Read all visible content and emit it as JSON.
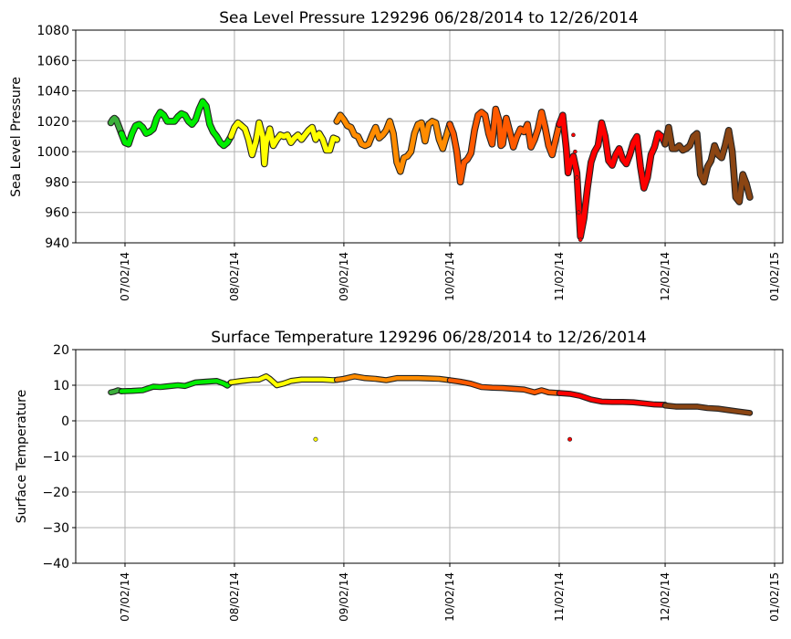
{
  "colors": {
    "late_june": "#3cb03c",
    "july": "#00ee00",
    "august": "#ffff00",
    "september": "#ff8c00",
    "october": "#ff5a00",
    "november": "#ff0000",
    "december": "#8b4513",
    "grid": "#b0b0b0",
    "edge": "#222222"
  },
  "chart_data": [
    {
      "type": "scatter",
      "title": "Sea Level Pressure 129296  06/28/2014 to 12/26/2014",
      "xlabel": "",
      "ylabel": "Sea Level Pressure",
      "ylim": [
        940,
        1080
      ],
      "yticks": [
        "940",
        "960",
        "980",
        "1000",
        "1020",
        "1040",
        "1060",
        "1080"
      ],
      "ytick_values": [
        940,
        960,
        980,
        1000,
        1020,
        1040,
        1060,
        1080
      ],
      "xticks": [
        "07/02/14",
        "08/02/14",
        "09/02/14",
        "10/02/14",
        "11/02/14",
        "12/02/14",
        "01/02/15"
      ],
      "xtick_days": [
        4,
        35,
        66,
        96,
        127,
        157,
        188
      ],
      "x_unit": "days since 06/28/2014",
      "grid": true,
      "series": [
        {
          "name": "late_june",
          "color_key": "late_june",
          "x": [
            0,
            0.5,
            1,
            1.5,
            2,
            2.5,
            3
          ],
          "y": [
            1019,
            1021,
            1022,
            1021,
            1018,
            1015,
            1012
          ]
        },
        {
          "name": "july",
          "color_key": "july",
          "x": [
            3,
            4,
            5,
            6,
            7,
            8,
            9,
            10,
            11,
            12,
            13,
            14,
            15,
            16,
            17,
            18,
            19,
            20,
            21,
            22,
            23,
            24,
            25,
            26,
            27,
            28,
            29,
            30,
            31,
            32,
            33,
            34
          ],
          "y": [
            1012,
            1006,
            1005,
            1012,
            1017,
            1018,
            1016,
            1012,
            1013,
            1015,
            1022,
            1026,
            1024,
            1020,
            1020,
            1020,
            1023,
            1025,
            1024,
            1020,
            1018,
            1021,
            1028,
            1033,
            1030,
            1018,
            1013,
            1010,
            1006,
            1004,
            1006,
            1010
          ]
        },
        {
          "name": "august",
          "color_key": "august",
          "x": [
            34,
            35,
            36,
            37,
            38,
            39,
            40,
            41,
            41.5,
            42,
            43,
            43.5,
            44,
            45,
            46,
            47,
            48,
            49,
            50,
            51,
            52,
            53,
            54,
            55,
            56,
            57,
            58,
            59,
            60,
            61,
            62,
            63,
            64
          ],
          "y": [
            1010,
            1016,
            1019,
            1017,
            1015,
            1008,
            998,
            1006,
            1012,
            1019,
            1010,
            992,
            1006,
            1015,
            1004,
            1008,
            1011,
            1010,
            1011,
            1006,
            1009,
            1011,
            1008,
            1011,
            1014,
            1016,
            1008,
            1012,
            1008,
            1001,
            1001,
            1009,
            1008
          ]
        },
        {
          "name": "september",
          "color_key": "september",
          "x": [
            64,
            65,
            66,
            67,
            68,
            69,
            70,
            71,
            72,
            73,
            74,
            75,
            76,
            77,
            78,
            79,
            80,
            81,
            82,
            83,
            84,
            85,
            86,
            87,
            88,
            89,
            90,
            91,
            92,
            93,
            94,
            95,
            96
          ],
          "y": [
            1020,
            1024,
            1021,
            1017,
            1016,
            1011,
            1010,
            1005,
            1004,
            1005,
            1011,
            1016,
            1009,
            1011,
            1014,
            1020,
            1012,
            993,
            987,
            996,
            997,
            1000,
            1012,
            1018,
            1019,
            1007,
            1018,
            1020,
            1019,
            1008,
            1002,
            1010,
            1018
          ]
        },
        {
          "name": "october",
          "color_key": "october",
          "x": [
            96,
            97,
            98,
            99,
            100,
            101,
            102,
            103,
            104,
            105,
            106,
            107,
            108,
            109,
            110,
            110.5,
            111,
            112,
            113,
            114,
            115,
            116,
            117,
            118,
            119,
            120,
            121,
            122,
            123,
            124,
            125,
            126,
            127
          ],
          "y": [
            1018,
            1012,
            1000,
            980,
            993,
            995,
            999,
            1014,
            1024,
            1026,
            1024,
            1012,
            1005,
            1028,
            1020,
            1004,
            1005,
            1022,
            1013,
            1003,
            1010,
            1015,
            1013,
            1018,
            1003,
            1008,
            1015,
            1026,
            1016,
            1004,
            998,
            1008,
            1018
          ]
        },
        {
          "name": "november",
          "color_key": "november",
          "x": [
            127,
            128,
            129,
            129.5,
            130,
            131,
            132,
            133,
            134,
            135,
            136,
            137,
            138,
            139,
            140,
            141,
            142,
            143,
            144,
            145,
            146,
            147,
            148,
            149,
            150,
            151,
            152,
            153,
            154,
            155,
            156,
            157
          ],
          "y": [
            1018,
            1024,
            1002,
            986,
            992,
            997,
            986,
            944,
            956,
            976,
            993,
            1000,
            1004,
            1019,
            1010,
            994,
            991,
            998,
            1002,
            995,
            992,
            998,
            1006,
            1010,
            990,
            976,
            983,
            998,
            1003,
            1012,
            1010,
            1005
          ]
        },
        {
          "name": "december",
          "color_key": "december",
          "x": [
            157,
            158,
            159,
            160,
            161,
            162,
            163,
            164,
            165,
            166,
            167,
            168,
            169,
            170,
            171,
            172,
            173,
            174,
            175,
            176,
            177,
            178,
            179,
            180,
            181
          ],
          "y": [
            1005,
            1016,
            1002,
            1002,
            1004,
            1001,
            1002,
            1004,
            1010,
            1012,
            985,
            980,
            990,
            994,
            1004,
            998,
            996,
            1004,
            1014,
            1000,
            970,
            967,
            985,
            979,
            970
          ]
        },
        {
          "name": "november_gap_points",
          "color_key": "november",
          "x": [
            131,
            131.5,
            132,
            132.5,
            133
          ],
          "y": [
            1011,
            1000,
            983,
            960,
            942
          ]
        }
      ]
    },
    {
      "type": "scatter",
      "title": "Surface Temperature 129296  06/28/2014 to 12/26/2014",
      "xlabel": "",
      "ylabel": "Surface Temperature",
      "ylim": [
        -40,
        20
      ],
      "yticks": [
        "−40",
        "−30",
        "−20",
        "−10",
        "0",
        "10",
        "20"
      ],
      "ytick_values": [
        -40,
        -30,
        -20,
        -10,
        0,
        10,
        20
      ],
      "xticks": [
        "07/02/14",
        "08/02/14",
        "09/02/14",
        "10/02/14",
        "11/02/14",
        "12/02/14",
        "01/02/15"
      ],
      "xtick_days": [
        4,
        35,
        66,
        96,
        127,
        157,
        188
      ],
      "x_unit": "days since 06/28/2014",
      "grid": true,
      "series": [
        {
          "name": "late_june",
          "color_key": "late_june",
          "x": [
            0,
            1,
            2,
            3
          ],
          "y": [
            8.0,
            8.2,
            8.6,
            8.3
          ]
        },
        {
          "name": "july",
          "color_key": "july",
          "x": [
            3,
            6,
            9,
            12,
            14,
            16,
            19,
            21,
            24,
            27,
            30,
            32,
            33,
            34
          ],
          "y": [
            8.3,
            8.4,
            8.6,
            9.6,
            9.5,
            9.7,
            10.0,
            9.8,
            10.8,
            11.0,
            11.2,
            10.5,
            9.9,
            10.8
          ]
        },
        {
          "name": "august",
          "color_key": "august",
          "x": [
            34,
            37,
            40,
            42,
            44,
            45,
            47,
            49,
            51,
            54,
            57,
            60,
            63,
            64
          ],
          "y": [
            10.8,
            11.2,
            11.5,
            11.6,
            12.5,
            11.8,
            10.0,
            10.5,
            11.2,
            11.6,
            11.6,
            11.6,
            11.4,
            11.5
          ]
        },
        {
          "name": "september",
          "color_key": "september",
          "x": [
            64,
            66,
            69,
            72,
            75,
            78,
            81,
            84,
            87,
            90,
            93,
            96
          ],
          "y": [
            11.5,
            11.8,
            12.5,
            12.0,
            11.8,
            11.4,
            12.0,
            12.0,
            12.0,
            11.9,
            11.8,
            11.4
          ]
        },
        {
          "name": "october",
          "color_key": "october",
          "x": [
            96,
            99,
            102,
            105,
            108,
            111,
            114,
            117,
            120,
            122,
            124,
            127
          ],
          "y": [
            11.4,
            11.0,
            10.4,
            9.5,
            9.3,
            9.2,
            9.0,
            8.8,
            8.0,
            8.6,
            8.0,
            7.8
          ]
        },
        {
          "name": "november",
          "color_key": "november",
          "x": [
            127,
            130,
            133,
            136,
            139,
            142,
            145,
            148,
            151,
            154,
            157
          ],
          "y": [
            7.8,
            7.6,
            7.0,
            6.0,
            5.4,
            5.3,
            5.3,
            5.2,
            4.9,
            4.6,
            4.5
          ]
        },
        {
          "name": "december",
          "color_key": "december",
          "x": [
            157,
            160,
            163,
            166,
            169,
            172,
            175,
            178,
            181
          ],
          "y": [
            4.3,
            4.0,
            4.0,
            4.0,
            3.6,
            3.4,
            3.0,
            2.6,
            2.2
          ]
        }
      ],
      "outliers": [
        {
          "x": 58,
          "y": -5.2,
          "color_key": "august"
        },
        {
          "x": 130,
          "y": -5.2,
          "color_key": "november"
        }
      ]
    }
  ]
}
